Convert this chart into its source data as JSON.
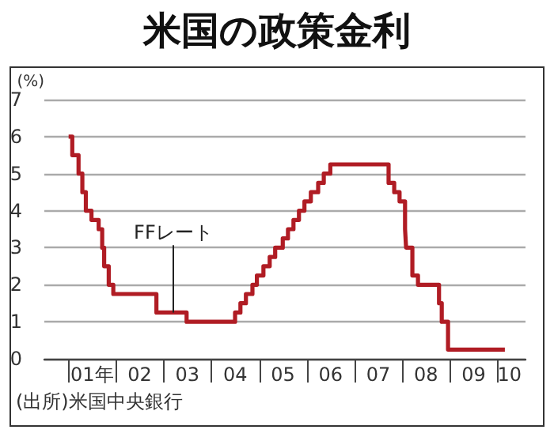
{
  "chart_data": {
    "type": "step",
    "title": "米国の政策金利",
    "ylabel": "(%)",
    "annotations": [
      {
        "text": "FFレート",
        "x": "2003-03-15",
        "y": 1.25
      },
      "(出所)米国中央銀行"
    ],
    "series": [
      {
        "color": "#b01c24",
        "x": [
          "2001-01-03",
          "2001-01-31",
          "2001-03-20",
          "2001-04-18",
          "2001-05-15",
          "2001-06-27",
          "2001-08-21",
          "2001-09-17",
          "2001-10-02",
          "2001-11-06",
          "2001-12-11",
          "2002-11-06",
          "2003-06-25",
          "2004-06-30",
          "2004-08-10",
          "2004-09-21",
          "2004-11-10",
          "2004-12-14",
          "2005-02-02",
          "2005-03-22",
          "2005-05-03",
          "2005-06-30",
          "2005-08-09",
          "2005-09-20",
          "2005-11-01",
          "2005-12-13",
          "2006-01-31",
          "2006-03-28",
          "2006-05-10",
          "2006-06-29",
          "2007-09-18",
          "2007-10-31",
          "2007-12-11",
          "2008-01-22",
          "2008-01-30",
          "2008-03-18",
          "2008-04-30",
          "2008-10-08",
          "2008-10-29",
          "2008-12-16",
          "2010-02-24"
        ],
        "values": [
          6.0,
          5.5,
          5.0,
          4.5,
          4.0,
          3.75,
          3.5,
          3.0,
          2.5,
          2.0,
          1.75,
          1.25,
          1.0,
          1.25,
          1.5,
          1.75,
          2.0,
          2.25,
          2.5,
          2.75,
          3.0,
          3.25,
          3.5,
          3.75,
          4.0,
          4.25,
          4.5,
          4.75,
          5.0,
          5.25,
          4.75,
          4.5,
          4.25,
          3.5,
          3.0,
          2.25,
          2.0,
          1.5,
          1.0,
          0.25,
          0.25
        ]
      }
    ],
    "xlim": [
      "2000-07-01",
      "2010-08-01"
    ],
    "xticks": [
      {
        "value": "2001",
        "label": null
      },
      {
        "value": "2001-07",
        "label": "01年"
      },
      {
        "value": "2002",
        "label": null
      },
      {
        "value": "2002-07",
        "label": "02"
      },
      {
        "value": "2003",
        "label": null
      },
      {
        "value": "2003-07",
        "label": "03"
      },
      {
        "value": "2004",
        "label": null
      },
      {
        "value": "2004-07",
        "label": "04"
      },
      {
        "value": "2005",
        "label": null
      },
      {
        "value": "2005-07",
        "label": "05"
      },
      {
        "value": "2006",
        "label": null
      },
      {
        "value": "2006-07",
        "label": "06"
      },
      {
        "value": "2007",
        "label": null
      },
      {
        "value": "2007-07",
        "label": "07"
      },
      {
        "value": "2008",
        "label": null
      },
      {
        "value": "2008-07",
        "label": "08"
      },
      {
        "value": "2009",
        "label": null
      },
      {
        "value": "2009-07",
        "label": "09"
      },
      {
        "value": "2010",
        "label": null
      },
      {
        "value": "2010-04",
        "label": "10"
      }
    ],
    "ylim": [
      0,
      7
    ],
    "yticks": [
      0,
      1,
      2,
      3,
      4,
      5,
      6,
      7
    ],
    "grid": "y",
    "marker": "none",
    "line_style": "solid"
  }
}
